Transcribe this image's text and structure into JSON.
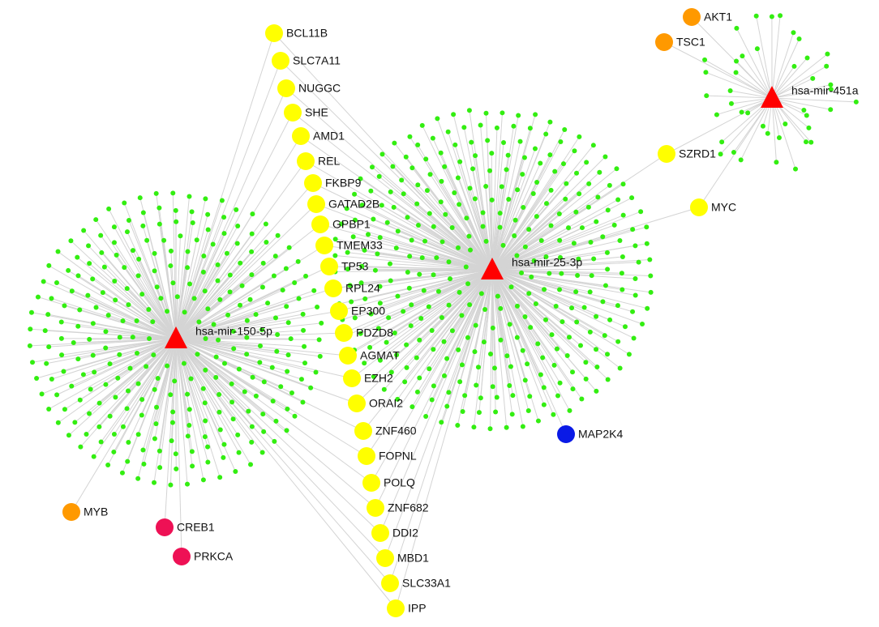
{
  "mirnas": [
    "hsa-mir-150-5p",
    "hsa-mir-25-3p",
    "hsa-mir-451a"
  ],
  "genes": [
    {
      "label": "BCL11B",
      "color": "#ffff00"
    },
    {
      "label": "SLC7A11",
      "color": "#ffff00"
    },
    {
      "label": "NUGGC",
      "color": "#ffff00"
    },
    {
      "label": "SHE",
      "color": "#ffff00"
    },
    {
      "label": "AMD1",
      "color": "#ffff00"
    },
    {
      "label": "REL",
      "color": "#ffff00"
    },
    {
      "label": "FKBP9",
      "color": "#ffff00"
    },
    {
      "label": "GATAD2B",
      "color": "#ffff00"
    },
    {
      "label": "GPBP1",
      "color": "#ffff00"
    },
    {
      "label": "TMEM33",
      "color": "#ffff00"
    },
    {
      "label": "TP53",
      "color": "#ffff00"
    },
    {
      "label": "RPL24",
      "color": "#ffff00"
    },
    {
      "label": "EP300",
      "color": "#ffff00"
    },
    {
      "label": "PDZD8",
      "color": "#ffff00"
    },
    {
      "label": "AGMAT",
      "color": "#ffff00"
    },
    {
      "label": "EZH2",
      "color": "#ffff00"
    },
    {
      "label": "ORAI2",
      "color": "#ffff00"
    },
    {
      "label": "ZNF460",
      "color": "#ffff00"
    },
    {
      "label": "FOPNL",
      "color": "#ffff00"
    },
    {
      "label": "POLQ",
      "color": "#ffff00"
    },
    {
      "label": "ZNF682",
      "color": "#ffff00"
    },
    {
      "label": "DDI2",
      "color": "#ffff00"
    },
    {
      "label": "MBD1",
      "color": "#ffff00"
    },
    {
      "label": "SLC33A1",
      "color": "#ffff00"
    },
    {
      "label": "IPP",
      "color": "#ffff00"
    },
    {
      "label": "SZRD1",
      "color": "#ffff00"
    },
    {
      "label": "MYC",
      "color": "#ffff00"
    },
    {
      "label": "AKT1",
      "color": "#ff9900"
    },
    {
      "label": "TSC1",
      "color": "#ff9900"
    },
    {
      "label": "MYB",
      "color": "#ff9900"
    },
    {
      "label": "CREB1",
      "color": "#ee1155"
    },
    {
      "label": "PRKCA",
      "color": "#ee1155"
    },
    {
      "label": "MAP2K4",
      "color": "#0a1ae6"
    }
  ]
}
